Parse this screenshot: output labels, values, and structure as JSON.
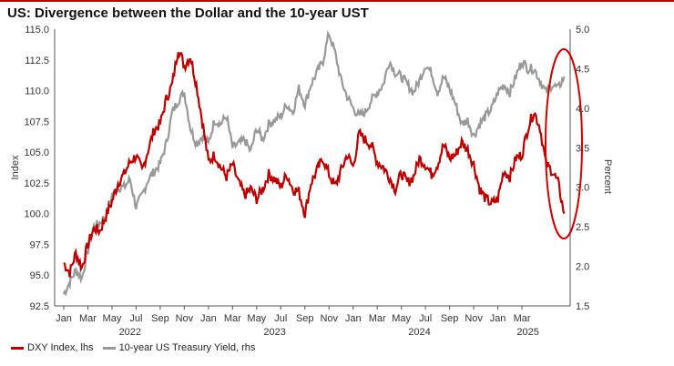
{
  "title": "US: Divergence between the Dollar and the 10-year UST",
  "chart_data": {
    "type": "line",
    "title": "US: Divergence between the Dollar and the 10-year UST",
    "x_tick_labels": [
      "Jan",
      "Mar",
      "May",
      "Jul",
      "Sep",
      "Nov",
      "Jan",
      "Mar",
      "May",
      "Jul",
      "Sep",
      "Nov",
      "Jan",
      "Mar",
      "May",
      "Jul",
      "Sep",
      "Nov",
      "Jan",
      "Mar"
    ],
    "year_labels": [
      "2022",
      "2023",
      "2024",
      "2025"
    ],
    "y_left": {
      "label": "Index",
      "ylim": [
        92.5,
        115.0
      ],
      "ticks": [
        "115.0",
        "112.5",
        "110.0",
        "107.5",
        "105.0",
        "102.5",
        "100.0",
        "97.5",
        "95.0",
        "92.5"
      ]
    },
    "y_right": {
      "label": "Percent",
      "ylim": [
        1.5,
        5.0
      ],
      "ticks": [
        "5.0",
        "4.5",
        "4.0",
        "3.5",
        "3.0",
        "2.5",
        "2.0",
        "1.5"
      ]
    },
    "series": [
      {
        "name": "DXY Index, lhs",
        "axis": "left",
        "color": "#c00000",
        "x": [
          0,
          0.5,
          1,
          1.5,
          2,
          2.5,
          3,
          3.5,
          4,
          4.5,
          5,
          5.5,
          6,
          6.5,
          7,
          7.5,
          8,
          8.5,
          9,
          9.5,
          10,
          10.5,
          11,
          11.5,
          12,
          12.5,
          13,
          13.5,
          14,
          14.5,
          15,
          15.5,
          16,
          16.5,
          17,
          17.5,
          18,
          18.5,
          19,
          19.5,
          20,
          20.5,
          21,
          21.5,
          22,
          22.5,
          23,
          23.5,
          24,
          24.5,
          25,
          25.5,
          26,
          26.5,
          27,
          27.5,
          28,
          28.5,
          29,
          29.5,
          30,
          30.5,
          31,
          31.5,
          32,
          32.5,
          33,
          33.5,
          34,
          34.5,
          35,
          35.5,
          36,
          36.5,
          37,
          37.5,
          38,
          38.5,
          39,
          39.5
        ],
        "values": [
          96.0,
          95.2,
          96.8,
          95.6,
          97.5,
          98.8,
          98.6,
          99.8,
          101.0,
          102.5,
          103.2,
          104.2,
          104.7,
          103.5,
          105.2,
          106.8,
          107.3,
          109.3,
          110.5,
          113.5,
          112.0,
          112.8,
          110.5,
          107.5,
          104.2,
          104.8,
          103.8,
          103.0,
          104.0,
          102.5,
          101.5,
          102.0,
          101.2,
          102.0,
          103.2,
          102.8,
          102.2,
          103.2,
          102.0,
          101.8,
          100.0,
          102.5,
          103.5,
          104.5,
          103.2,
          102.2,
          103.5,
          104.8,
          103.8,
          106.5,
          106.0,
          105.6,
          104.2,
          103.8,
          103.0,
          102.0,
          103.3,
          102.5,
          103.0,
          104.5,
          104.0,
          103.2,
          104.0,
          105.6,
          104.5,
          104.8,
          105.8,
          105.2,
          104.0,
          102.0,
          101.2,
          100.8,
          101.2,
          103.5,
          103.0,
          104.5,
          104.8,
          107.0,
          108.3,
          107.0
        ]
      },
      {
        "name": "10-year US Treasury Yield, rhs",
        "axis": "right",
        "color": "#999999",
        "x": [
          0,
          0.5,
          1,
          1.5,
          2,
          2.5,
          3,
          3.5,
          4,
          4.5,
          5,
          5.5,
          6,
          6.5,
          7,
          7.5,
          8,
          8.5,
          9,
          9.5,
          10,
          10.5,
          11,
          11.5,
          12,
          12.5,
          13,
          13.5,
          14,
          14.5,
          15,
          15.5,
          16,
          16.5,
          17,
          17.5,
          18,
          18.5,
          19,
          19.5,
          20,
          20.5,
          21,
          21.5,
          22,
          22.5,
          23,
          23.5,
          24,
          24.5,
          25,
          25.5,
          26,
          26.5,
          27,
          27.5,
          28,
          28.5,
          29,
          29.5,
          30,
          30.5,
          31,
          31.5,
          32,
          32.5,
          33,
          33.5,
          34,
          34.5,
          35,
          35.5,
          36,
          36.5,
          37,
          37.5,
          38,
          38.5,
          39,
          39.5
        ],
        "values": [
          1.65,
          1.8,
          1.95,
          1.85,
          2.2,
          2.5,
          2.55,
          2.65,
          2.9,
          3.0,
          3.0,
          3.1,
          2.75,
          2.9,
          3.1,
          3.2,
          3.3,
          3.55,
          3.95,
          4.1,
          4.2,
          3.75,
          3.55,
          3.65,
          3.55,
          3.85,
          3.8,
          3.9,
          3.5,
          3.55,
          3.6,
          3.45,
          3.75,
          3.6,
          3.8,
          3.85,
          3.9,
          4.05,
          3.95,
          4.25,
          4.05,
          4.3,
          4.45,
          4.6,
          4.95,
          4.7,
          4.35,
          4.15,
          4.0,
          3.9,
          3.95,
          4.1,
          4.2,
          4.3,
          4.6,
          4.45,
          4.4,
          4.3,
          4.2,
          4.35,
          4.55,
          4.45,
          4.2,
          4.4,
          4.25,
          4.05,
          3.8,
          3.85,
          3.65,
          3.8,
          3.9,
          4.0,
          4.2,
          4.3,
          4.2,
          4.4,
          4.6,
          4.5,
          4.5,
          4.35
        ]
      }
    ]
  },
  "tail": {
    "dxy": {
      "x": [
        39.5,
        40,
        40.5,
        41,
        41.5
      ],
      "values": [
        107.0,
        104.0,
        103.5,
        102.5,
        100.0
      ]
    },
    "ust": {
      "x": [
        39.5,
        40,
        40.5,
        41,
        41.5
      ],
      "values": [
        4.35,
        4.2,
        4.3,
        4.25,
        4.4
      ]
    }
  },
  "legend": {
    "dxy_label": "DXY Index, lhs",
    "ust_label": "10-year US Treasury Yield, rhs"
  },
  "colors": {
    "dxy": "#c00000",
    "ust": "#999999",
    "highlight": "#d40000",
    "title_rule": "#c00000"
  }
}
